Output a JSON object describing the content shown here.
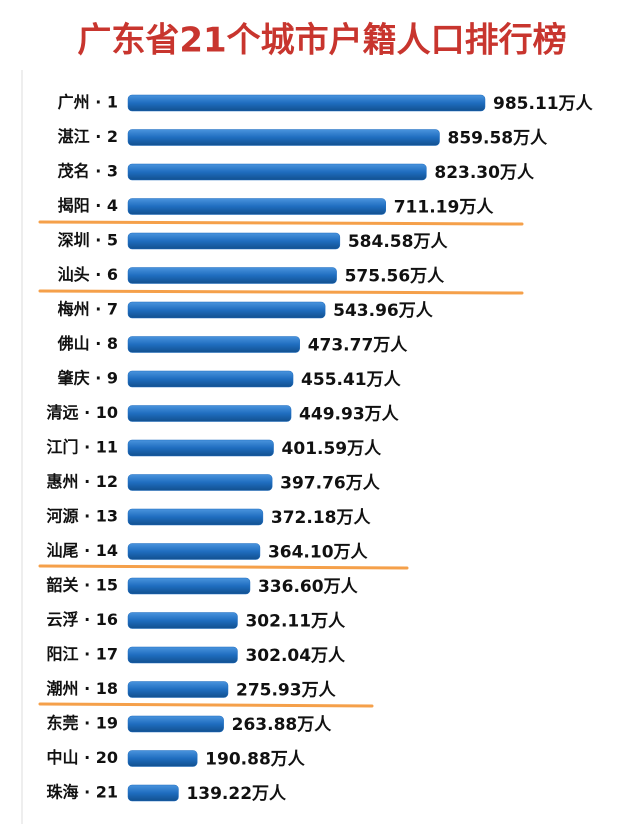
{
  "chart_data": {
    "type": "hbar",
    "title": "广东省21个城市户籍人口排行榜",
    "categories": [
      "广州 · 1",
      "湛江 · 2",
      "茂名 · 3",
      "揭阳 · 4",
      "深圳 · 5",
      "汕头 · 6",
      "梅州 · 7",
      "佛山 · 8",
      "肇庆 · 9",
      "清远 · 10",
      "江门 · 11",
      "惠州 · 12",
      "河源 · 13",
      "汕尾 · 14",
      "韶关 · 15",
      "云浮 · 16",
      "阳江 · 17",
      "潮州 · 18",
      "东莞 · 19",
      "中山 · 20",
      "珠海 · 21"
    ],
    "values": [
      985.11,
      859.58,
      823.3,
      711.19,
      584.58,
      575.56,
      543.96,
      473.77,
      455.41,
      449.93,
      401.59,
      397.76,
      372.18,
      364.1,
      336.6,
      302.11,
      302.04,
      275.93,
      263.88,
      190.88,
      139.22
    ],
    "value_labels": [
      "985.11万人",
      "859.58万人",
      "823.30万人",
      "711.19万人",
      "584.58万人",
      "575.56万人",
      "543.96万人",
      "473.77万人",
      "455.41万人",
      "449.93万人",
      "401.59万人",
      "397.76万人",
      "372.18万人",
      "364.10万人",
      "336.60万人",
      "302.11万人",
      "302.04万人",
      "275.93万人",
      "263.88万人",
      "190.88万人",
      "139.22万人"
    ],
    "color": "#1f6dbf"
  }
}
